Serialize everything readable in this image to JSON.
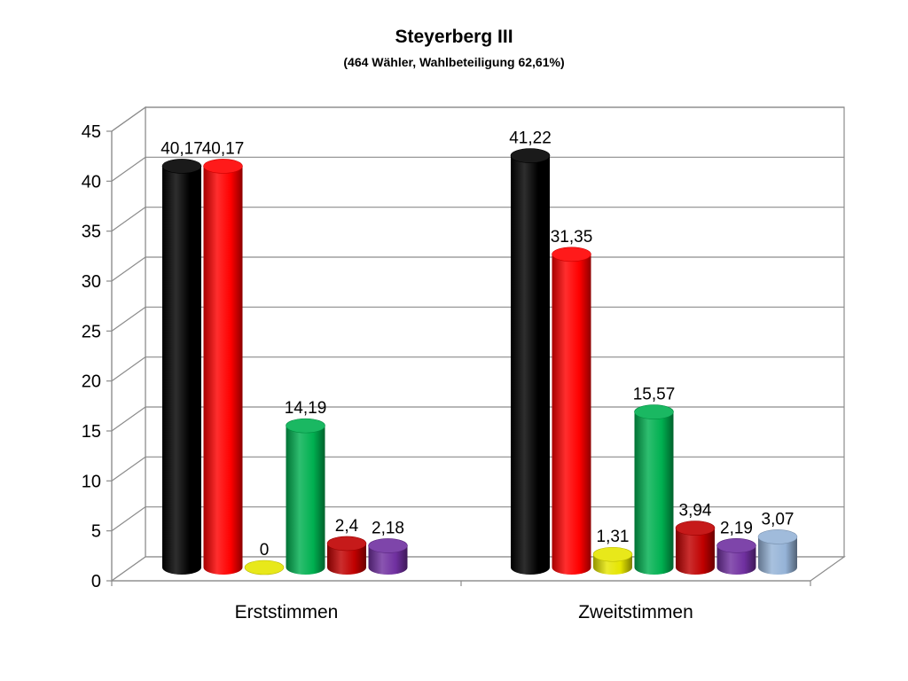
{
  "chart_data": {
    "type": "bar",
    "title": "Steyerberg III",
    "subtitle": "(464 Wähler, Wahlbeteiligung 62,61%)",
    "categories": [
      "Erststimmen",
      "Zweitstimmen"
    ],
    "ylim": [
      0,
      45
    ],
    "yticks": [
      0,
      5,
      10,
      15,
      20,
      25,
      30,
      35,
      40,
      45
    ],
    "grid": true,
    "legend": "none",
    "series": [
      {
        "color": "#000000",
        "values": [
          40.17,
          41.22
        ],
        "labels": [
          "40,17",
          "41,22"
        ]
      },
      {
        "color": "#ff0000",
        "values": [
          40.17,
          31.35
        ],
        "labels": [
          "40,17",
          "31,35"
        ]
      },
      {
        "color": "#e5e500",
        "values": [
          0,
          1.31
        ],
        "labels": [
          "0",
          "1,31"
        ]
      },
      {
        "color": "#00b050",
        "values": [
          14.19,
          15.57
        ],
        "labels": [
          "14,19",
          "15,57"
        ]
      },
      {
        "color": "#c00000",
        "values": [
          2.4,
          3.94
        ],
        "labels": [
          "2,4",
          "3,94"
        ]
      },
      {
        "color": "#7030a0",
        "values": [
          2.18,
          2.19
        ],
        "labels": [
          "2,18",
          "2,19"
        ]
      },
      {
        "color": "#95b3d7",
        "values": [
          null,
          3.07
        ],
        "labels": [
          null,
          "3,07"
        ]
      }
    ]
  }
}
